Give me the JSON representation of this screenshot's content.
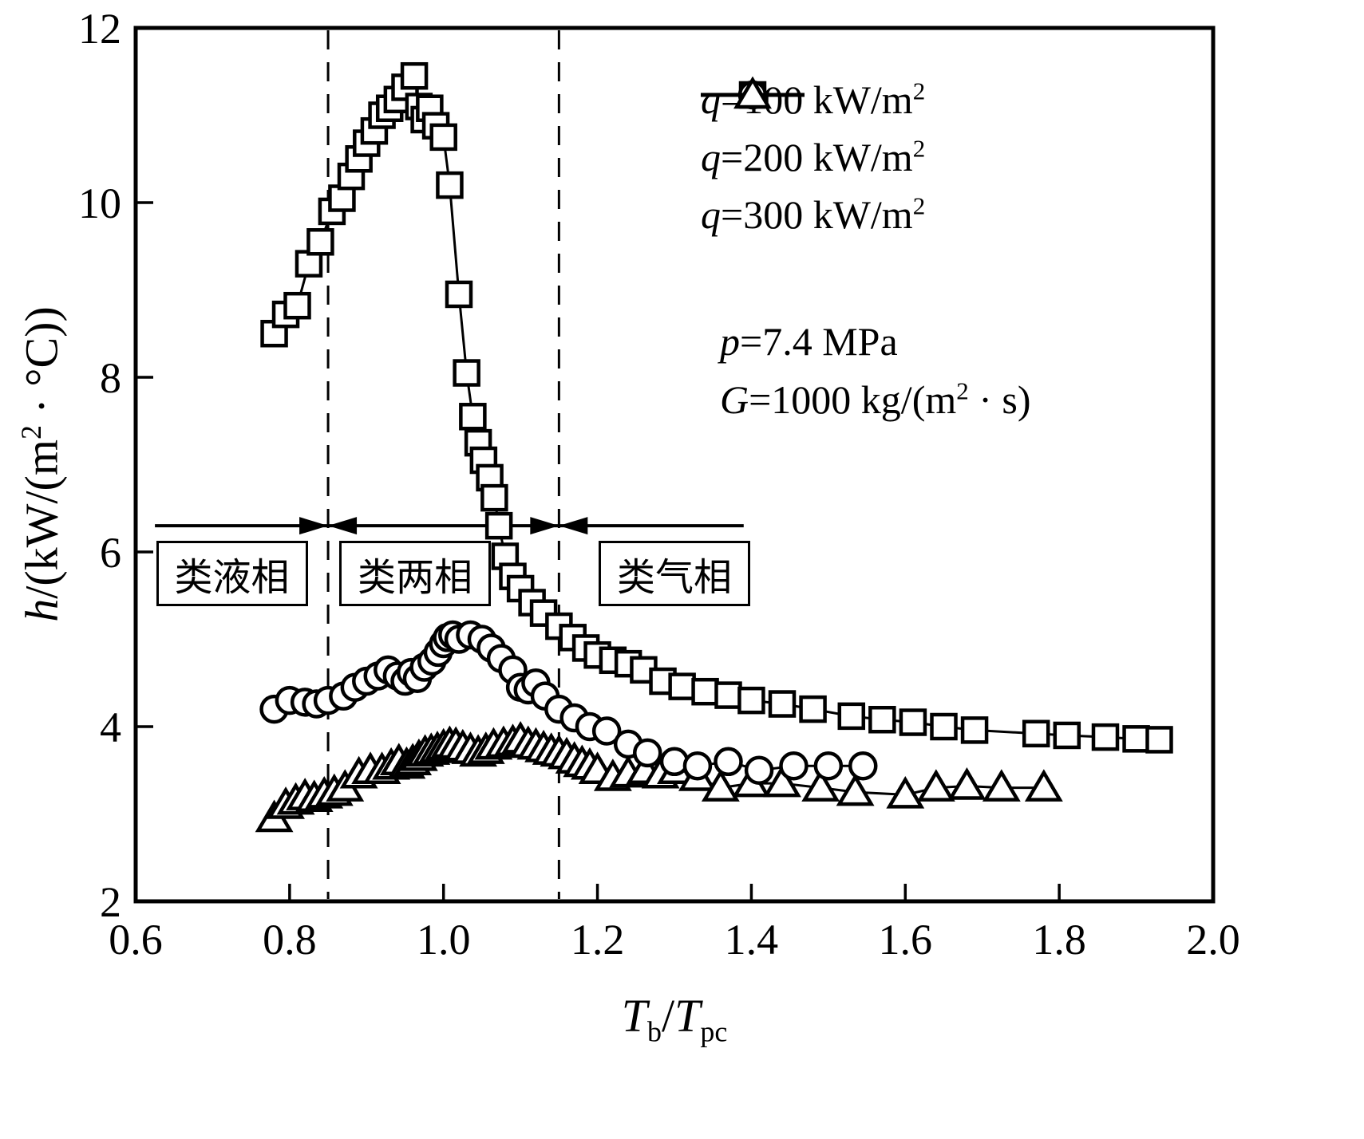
{
  "colors": {
    "fg": "#000000",
    "bg": "#ffffff"
  },
  "chart_data": {
    "type": "line",
    "title": "",
    "xlabel": "Tb/Tpc",
    "ylabel": "h/(kW/(m2 · °C))",
    "xlabel_segments": [
      {
        "t": "T",
        "s": "i"
      },
      {
        "t": "b",
        "s": "sub"
      },
      {
        "t": "/",
        "s": ""
      },
      {
        "t": "T",
        "s": "i"
      },
      {
        "t": "pc",
        "s": "sub"
      }
    ],
    "ylabel_segments": [
      {
        "t": "h",
        "s": "i"
      },
      {
        "t": "/(kW/(m",
        "s": ""
      },
      {
        "t": "2",
        "s": "sup"
      },
      {
        "t": " · °C))",
        "s": ""
      }
    ],
    "xlim": [
      0.6,
      2.0
    ],
    "ylim": [
      2,
      12
    ],
    "xticks": [
      0.6,
      0.8,
      1.0,
      1.2,
      1.4,
      1.6,
      1.8,
      2.0
    ],
    "xtick_labels": [
      "0.6",
      "0.8",
      "1.0",
      "1.2",
      "1.4",
      "1.6",
      "1.8",
      "2.0"
    ],
    "yticks": [
      2,
      4,
      6,
      8,
      10,
      12
    ],
    "ytick_labels": [
      "2",
      "4",
      "6",
      "8",
      "10",
      "12"
    ],
    "grid": false,
    "legend_position": "top-right",
    "phase_boundaries_x": [
      0.85,
      1.15
    ],
    "arrow_y": 6.3,
    "region_label_y": 5.75,
    "regions": [
      {
        "label": "类液相",
        "arrow_x_from": 0.625,
        "arrow_x_to": 0.85,
        "heads": "right",
        "box_center_x": 0.725
      },
      {
        "label": "类两相",
        "arrow_x_from": 0.85,
        "arrow_x_to": 1.15,
        "heads": "both",
        "box_center_x": 0.963
      },
      {
        "label": "类气相",
        "arrow_x_from": 1.15,
        "arrow_x_to": 1.39,
        "heads": "left",
        "box_center_x": 1.3
      }
    ],
    "annotations": [
      {
        "segments": [
          {
            "t": "p",
            "s": "i"
          },
          {
            "t": "=7.4 MPa",
            "s": ""
          }
        ]
      },
      {
        "segments": [
          {
            "t": "G",
            "s": "i"
          },
          {
            "t": "=1000 kg/(m",
            "s": ""
          },
          {
            "t": "2",
            "s": "sup"
          },
          {
            "t": " · s)",
            "s": ""
          }
        ]
      }
    ],
    "legend_items": [
      {
        "marker": "square",
        "segments": [
          {
            "t": "q",
            "s": "i"
          },
          {
            "t": "=100 kW/m",
            "s": ""
          },
          {
            "t": "2",
            "s": "sup"
          }
        ]
      },
      {
        "marker": "circle",
        "segments": [
          {
            "t": "q",
            "s": "i"
          },
          {
            "t": "=200 kW/m",
            "s": ""
          },
          {
            "t": "2",
            "s": "sup"
          }
        ]
      },
      {
        "marker": "triangle",
        "segments": [
          {
            "t": "q",
            "s": "i"
          },
          {
            "t": "=300 kW/m",
            "s": ""
          },
          {
            "t": "2",
            "s": "sup"
          }
        ]
      }
    ],
    "series": [
      {
        "name": "q=100 kW/m²",
        "marker": "square",
        "points": [
          [
            0.78,
            8.5
          ],
          [
            0.795,
            8.72
          ],
          [
            0.81,
            8.82
          ],
          [
            0.825,
            9.3
          ],
          [
            0.84,
            9.55
          ],
          [
            0.855,
            9.9
          ],
          [
            0.868,
            10.05
          ],
          [
            0.88,
            10.3
          ],
          [
            0.89,
            10.5
          ],
          [
            0.9,
            10.68
          ],
          [
            0.91,
            10.82
          ],
          [
            0.92,
            11.0
          ],
          [
            0.93,
            11.08
          ],
          [
            0.94,
            11.18
          ],
          [
            0.95,
            11.32
          ],
          [
            0.962,
            11.45
          ],
          [
            0.968,
            11.1
          ],
          [
            0.975,
            10.95
          ],
          [
            0.982,
            11.08
          ],
          [
            0.99,
            10.88
          ],
          [
            1.0,
            10.75
          ],
          [
            1.008,
            10.2
          ],
          [
            1.02,
            8.95
          ],
          [
            1.03,
            8.05
          ],
          [
            1.038,
            7.55
          ],
          [
            1.045,
            7.25
          ],
          [
            1.052,
            7.05
          ],
          [
            1.06,
            6.85
          ],
          [
            1.066,
            6.62
          ],
          [
            1.072,
            6.3
          ],
          [
            1.08,
            5.95
          ],
          [
            1.09,
            5.72
          ],
          [
            1.1,
            5.58
          ],
          [
            1.115,
            5.42
          ],
          [
            1.13,
            5.3
          ],
          [
            1.15,
            5.15
          ],
          [
            1.168,
            5.02
          ],
          [
            1.185,
            4.9
          ],
          [
            1.2,
            4.82
          ],
          [
            1.22,
            4.76
          ],
          [
            1.24,
            4.72
          ],
          [
            1.26,
            4.65
          ],
          [
            1.285,
            4.52
          ],
          [
            1.31,
            4.46
          ],
          [
            1.34,
            4.4
          ],
          [
            1.37,
            4.36
          ],
          [
            1.4,
            4.3
          ],
          [
            1.44,
            4.26
          ],
          [
            1.48,
            4.2
          ],
          [
            1.53,
            4.12
          ],
          [
            1.57,
            4.08
          ],
          [
            1.61,
            4.05
          ],
          [
            1.65,
            4.0
          ],
          [
            1.69,
            3.96
          ],
          [
            1.77,
            3.92
          ],
          [
            1.81,
            3.9
          ],
          [
            1.86,
            3.88
          ],
          [
            1.9,
            3.86
          ],
          [
            1.93,
            3.85
          ]
        ]
      },
      {
        "name": "q=200 kW/m²",
        "marker": "circle",
        "points": [
          [
            0.78,
            4.2
          ],
          [
            0.8,
            4.3
          ],
          [
            0.82,
            4.28
          ],
          [
            0.835,
            4.26
          ],
          [
            0.85,
            4.3
          ],
          [
            0.87,
            4.35
          ],
          [
            0.885,
            4.45
          ],
          [
            0.9,
            4.52
          ],
          [
            0.915,
            4.58
          ],
          [
            0.928,
            4.65
          ],
          [
            0.94,
            4.58
          ],
          [
            0.95,
            4.52
          ],
          [
            0.958,
            4.62
          ],
          [
            0.966,
            4.55
          ],
          [
            0.975,
            4.68
          ],
          [
            0.985,
            4.75
          ],
          [
            0.993,
            4.85
          ],
          [
            1.0,
            4.95
          ],
          [
            1.005,
            5.02
          ],
          [
            1.012,
            5.05
          ],
          [
            1.02,
            5.0
          ],
          [
            1.035,
            5.05
          ],
          [
            1.05,
            5.0
          ],
          [
            1.062,
            4.9
          ],
          [
            1.075,
            4.78
          ],
          [
            1.09,
            4.65
          ],
          [
            1.1,
            4.45
          ],
          [
            1.11,
            4.42
          ],
          [
            1.12,
            4.5
          ],
          [
            1.132,
            4.35
          ],
          [
            1.15,
            4.2
          ],
          [
            1.17,
            4.1
          ],
          [
            1.19,
            4.0
          ],
          [
            1.212,
            3.95
          ],
          [
            1.24,
            3.8
          ],
          [
            1.265,
            3.7
          ],
          [
            1.3,
            3.6
          ],
          [
            1.33,
            3.55
          ],
          [
            1.37,
            3.6
          ],
          [
            1.41,
            3.5
          ],
          [
            1.455,
            3.55
          ],
          [
            1.5,
            3.55
          ],
          [
            1.545,
            3.55
          ]
        ]
      },
      {
        "name": "q=300 kW/m²",
        "marker": "triangle",
        "points": [
          [
            0.78,
            2.95
          ],
          [
            0.795,
            3.1
          ],
          [
            0.808,
            3.15
          ],
          [
            0.82,
            3.2
          ],
          [
            0.832,
            3.18
          ],
          [
            0.845,
            3.22
          ],
          [
            0.858,
            3.25
          ],
          [
            0.872,
            3.3
          ],
          [
            0.89,
            3.45
          ],
          [
            0.905,
            3.5
          ],
          [
            0.92,
            3.5
          ],
          [
            0.932,
            3.55
          ],
          [
            0.942,
            3.6
          ],
          [
            0.952,
            3.56
          ],
          [
            0.96,
            3.6
          ],
          [
            0.968,
            3.65
          ],
          [
            0.976,
            3.7
          ],
          [
            0.984,
            3.72
          ],
          [
            0.992,
            3.74
          ],
          [
            1.0,
            3.77
          ],
          [
            1.008,
            3.8
          ],
          [
            1.016,
            3.79
          ],
          [
            1.025,
            3.76
          ],
          [
            1.035,
            3.73
          ],
          [
            1.045,
            3.7
          ],
          [
            1.055,
            3.73
          ],
          [
            1.065,
            3.78
          ],
          [
            1.078,
            3.8
          ],
          [
            1.09,
            3.82
          ],
          [
            1.1,
            3.85
          ],
          [
            1.11,
            3.8
          ],
          [
            1.12,
            3.78
          ],
          [
            1.13,
            3.75
          ],
          [
            1.14,
            3.72
          ],
          [
            1.15,
            3.7
          ],
          [
            1.16,
            3.67
          ],
          [
            1.17,
            3.62
          ],
          [
            1.18,
            3.58
          ],
          [
            1.19,
            3.55
          ],
          [
            1.2,
            3.5
          ],
          [
            1.22,
            3.42
          ],
          [
            1.24,
            3.46
          ],
          [
            1.262,
            3.5
          ],
          [
            1.282,
            3.45
          ],
          [
            1.302,
            3.5
          ],
          [
            1.33,
            3.42
          ],
          [
            1.36,
            3.3
          ],
          [
            1.4,
            3.35
          ],
          [
            1.44,
            3.35
          ],
          [
            1.49,
            3.3
          ],
          [
            1.535,
            3.25
          ],
          [
            1.6,
            3.22
          ],
          [
            1.64,
            3.3
          ],
          [
            1.68,
            3.32
          ],
          [
            1.725,
            3.3
          ],
          [
            1.78,
            3.3
          ]
        ]
      }
    ]
  }
}
